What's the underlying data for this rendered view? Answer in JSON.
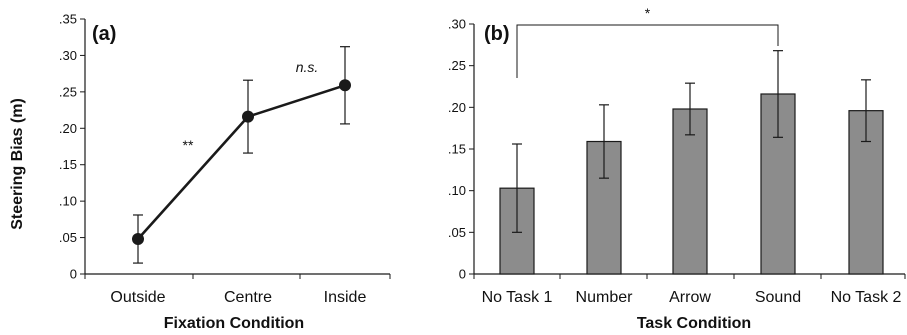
{
  "chart_data": [
    {
      "type": "line",
      "panel_label": "(a)",
      "categories": [
        "Outside",
        "Centre",
        "Inside"
      ],
      "series": [
        {
          "values": [
            0.048,
            0.216,
            0.259
          ],
          "error": [
            0.033,
            0.05,
            0.053
          ]
        }
      ],
      "xlabel": "Fixation Condition",
      "ylabel": "Steering Bias (m)",
      "ylim": [
        0,
        0.35
      ],
      "yticks": [
        {
          "value": 0,
          "label": "0"
        },
        {
          "value": 0.05,
          "label": ".05"
        },
        {
          "value": 0.1,
          "label": ".10"
        },
        {
          "value": 0.15,
          "label": ".15"
        },
        {
          "value": 0.2,
          "label": ".20"
        },
        {
          "value": 0.25,
          "label": ".25"
        },
        {
          "value": 0.3,
          "label": ".30"
        },
        {
          "value": 0.35,
          "label": ".35"
        }
      ],
      "annotations": [
        {
          "text": "**",
          "between": [
            "Outside",
            "Centre"
          ],
          "italic": false
        },
        {
          "text": "n.s.",
          "between": [
            "Centre",
            "Inside"
          ],
          "italic": true
        }
      ],
      "grid": false,
      "color": "#1a1a1a"
    },
    {
      "type": "bar",
      "panel_label": "(b)",
      "categories": [
        "No Task 1",
        "Number",
        "Arrow",
        "Sound",
        "No Task 2"
      ],
      "series": [
        {
          "values": [
            0.103,
            0.159,
            0.198,
            0.216,
            0.196
          ],
          "error": [
            0.053,
            0.044,
            0.031,
            0.052,
            0.037
          ]
        }
      ],
      "xlabel": "Task Condition",
      "ylabel": "",
      "ylim": [
        0,
        0.3
      ],
      "yticks": [
        {
          "value": 0,
          "label": "0"
        },
        {
          "value": 0.05,
          "label": ".05"
        },
        {
          "value": 0.1,
          "label": ".10"
        },
        {
          "value": 0.15,
          "label": ".15"
        },
        {
          "value": 0.2,
          "label": ".20"
        },
        {
          "value": 0.25,
          "label": ".25"
        },
        {
          "value": 0.3,
          "label": ".30"
        }
      ],
      "significance": {
        "text": "*",
        "from": "No Task 1",
        "to": "Sound"
      },
      "grid": false,
      "bar_color": "#8c8c8c",
      "edge_color": "#1a1a1a"
    }
  ]
}
